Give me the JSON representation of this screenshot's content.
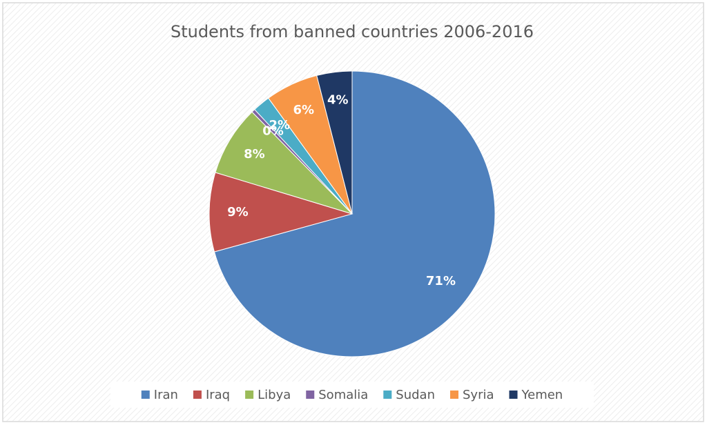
{
  "chart_data": {
    "type": "pie",
    "title": "Students from banned countries 2006-2016",
    "categories": [
      "Iran",
      "Iraq",
      "Libya",
      "Somalia",
      "Sudan",
      "Syria",
      "Yemen"
    ],
    "values": [
      71,
      9,
      8,
      0.4,
      2,
      6,
      4
    ],
    "value_labels": [
      "71%",
      "9%",
      "8%",
      "0%",
      "2%",
      "6%",
      "4%"
    ],
    "colors": [
      "#4f81bd",
      "#c0504d",
      "#9bbb59",
      "#8064a2",
      "#4bacc6",
      "#f79646",
      "#1f3864"
    ],
    "legend": "bottom"
  }
}
